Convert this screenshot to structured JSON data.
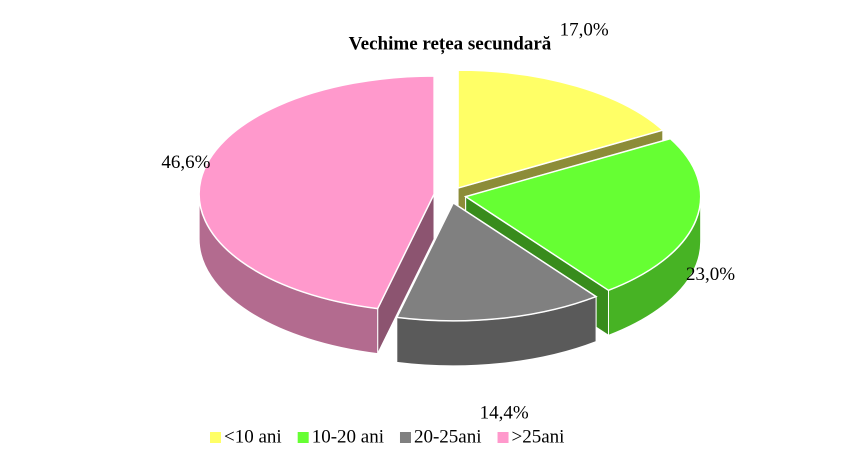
{
  "chart_data": {
    "type": "pie",
    "title": "Vechime rețea secundară",
    "categories": [
      "<10 ani",
      "10-20 ani",
      "20-25ani",
      ">25ani"
    ],
    "values": [
      17.0,
      23.0,
      14.4,
      46.6
    ],
    "value_labels": [
      "17,0%",
      "23,0%",
      "14,4%",
      "46,6%"
    ],
    "colors": [
      "#ffff66",
      "#66ff33",
      "#808080",
      "#ff99cc"
    ],
    "legend": "bottom"
  }
}
